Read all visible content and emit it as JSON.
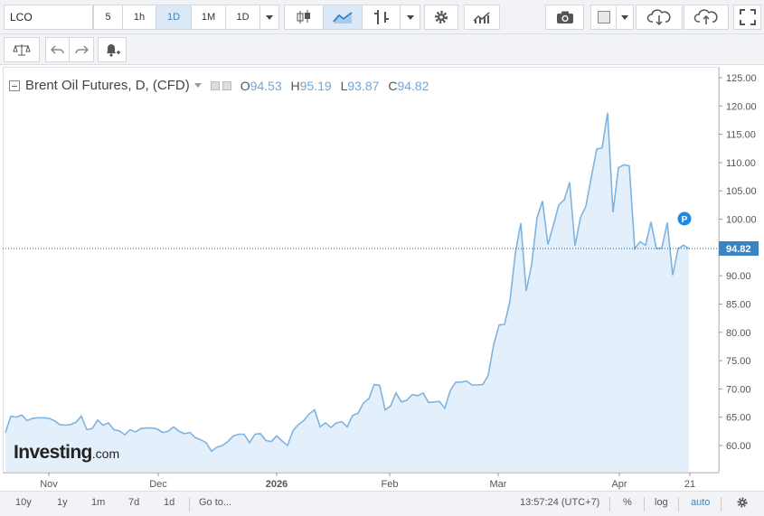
{
  "toolbar": {
    "symbol": "LCO",
    "intervals": [
      "5",
      "1h",
      "1D",
      "1M",
      "1D"
    ],
    "active_interval_index": 2
  },
  "legend": {
    "title": "Brent Oil Futures, D, (CFD)",
    "o_label": "O",
    "o": "94.53",
    "h_label": "H",
    "h": "95.19",
    "l_label": "L",
    "l": "93.87",
    "c_label": "C",
    "c": "94.82"
  },
  "brand": {
    "name": "Investing",
    "suffix": ".com"
  },
  "price_tag": "94.82",
  "marker_label": "P",
  "bottom": {
    "ranges": [
      "10y",
      "1y",
      "1m",
      "7d",
      "1d"
    ],
    "goto": "Go to...",
    "clock": "13:57:24 (UTC+7)",
    "percent": "%",
    "log": "log",
    "auto": "auto"
  },
  "colors": {
    "line": "#7fb3e0",
    "fill": "#e3f0fb",
    "accent": "#3b84c4",
    "tag": "#3b84c4"
  },
  "chart_data": {
    "type": "area",
    "title": "Brent Oil Futures, D, (CFD)",
    "x_tick_labels": [
      "Nov",
      "Dec",
      "2026",
      "Feb",
      "Mar",
      "Apr",
      "21"
    ],
    "y_tick_labels": [
      "60.00",
      "65.00",
      "70.00",
      "75.00",
      "80.00",
      "85.00",
      "90.00",
      "95.00",
      "100.00",
      "105.00",
      "110.00",
      "115.00",
      "120.00",
      "125.00"
    ],
    "ylim": [
      55,
      126
    ],
    "last_price": 94.82,
    "values": [
      62.3,
      65.2,
      65.0,
      65.4,
      64.4,
      64.8,
      64.9,
      64.9,
      64.8,
      64.4,
      63.7,
      63.6,
      63.7,
      64.1,
      65.2,
      62.8,
      63.0,
      64.5,
      63.6,
      64.0,
      62.8,
      62.6,
      61.9,
      62.8,
      62.4,
      63.0,
      63.1,
      63.1,
      62.9,
      62.3,
      62.5,
      63.3,
      62.5,
      62.1,
      62.3,
      61.4,
      61.0,
      60.5,
      59.0,
      59.7,
      60.0,
      60.7,
      61.7,
      62.0,
      62.0,
      60.5,
      62.0,
      62.1,
      60.9,
      60.7,
      61.7,
      60.8,
      60.0,
      62.6,
      63.7,
      64.4,
      65.6,
      66.3,
      63.3,
      64.0,
      63.2,
      64.0,
      64.2,
      63.3,
      65.3,
      65.7,
      67.5,
      68.3,
      70.8,
      70.6,
      66.3,
      67.0,
      69.3,
      67.7,
      68.0,
      69.0,
      68.8,
      69.3,
      67.6,
      67.7,
      67.8,
      66.6,
      69.7,
      71.2,
      71.2,
      71.4,
      70.7,
      70.7,
      70.8,
      72.4,
      77.8,
      81.3,
      81.4,
      85.5,
      94.0,
      99.3,
      87.3,
      92.0,
      100.3,
      103.2,
      95.5,
      98.9,
      102.5,
      103.4,
      106.5,
      95.3,
      100.3,
      102.3,
      107.4,
      112.4,
      112.6,
      118.8,
      101.2,
      109.1,
      109.6,
      109.4,
      94.8,
      96.0,
      95.4,
      99.5,
      94.8,
      94.9,
      99.4,
      90.1,
      94.8,
      95.4,
      94.8
    ]
  }
}
